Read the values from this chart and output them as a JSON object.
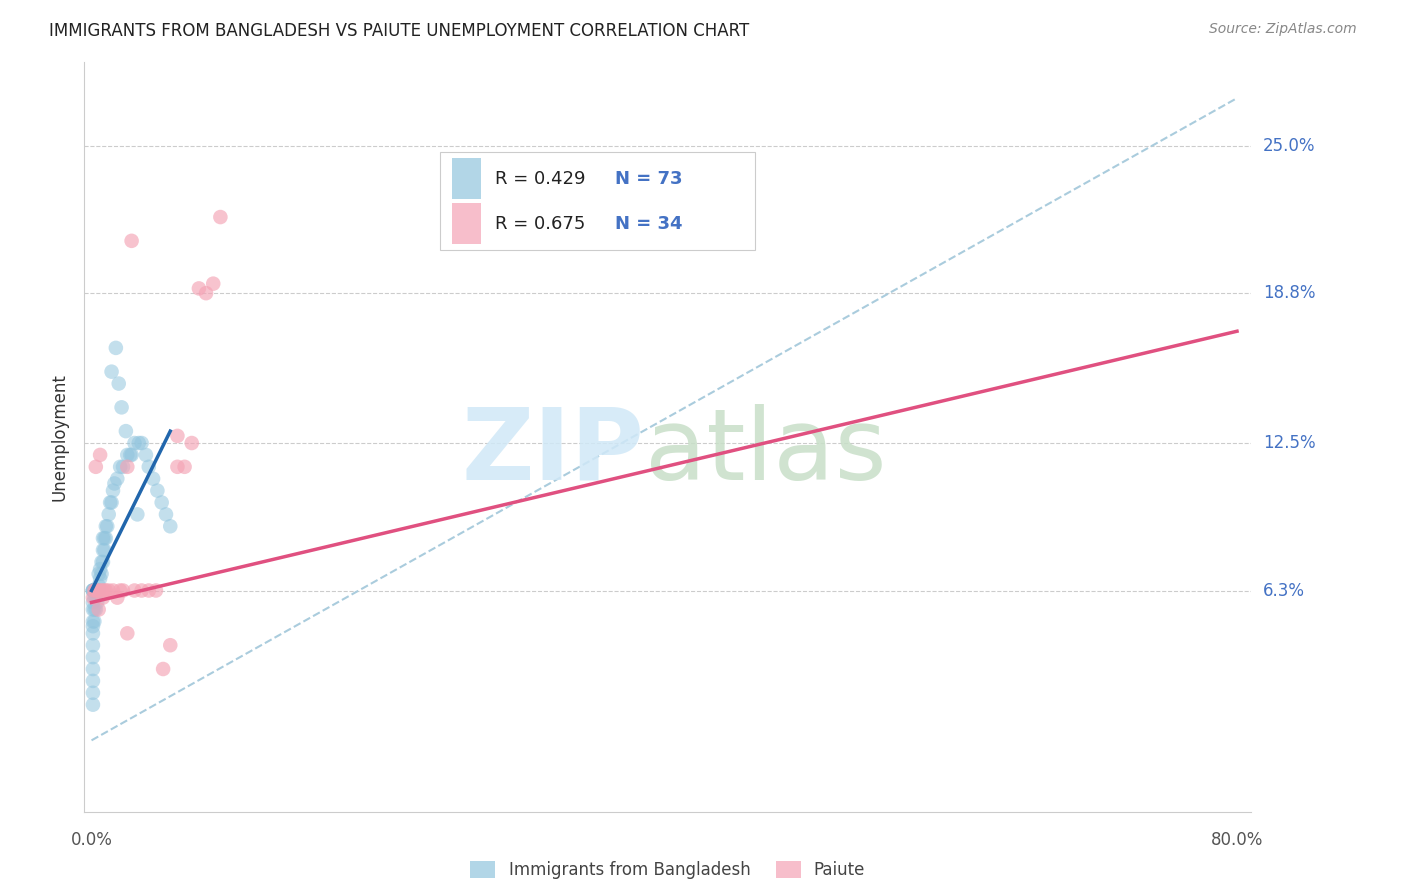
{
  "title": "IMMIGRANTS FROM BANGLADESH VS PAIUTE UNEMPLOYMENT CORRELATION CHART",
  "source": "Source: ZipAtlas.com",
  "ylabel": "Unemployment",
  "ytick_values": [
    0.063,
    0.125,
    0.188,
    0.25
  ],
  "ytick_labels": [
    "6.3%",
    "12.5%",
    "18.8%",
    "25.0%"
  ],
  "xmin": 0.0,
  "xmax": 0.8,
  "ymin": -0.03,
  "ymax": 0.285,
  "blue_color": "#92c5de",
  "pink_color": "#f4a3b5",
  "blue_line_color": "#2166ac",
  "pink_line_color": "#e05080",
  "dashed_color": "#aaccdd",
  "label_color": "#4472c4",
  "title_color": "#222222",
  "source_color": "#888888",
  "grid_color": "#cccccc",
  "watermark_zip_color": "#d0e8f7",
  "watermark_atlas_color": "#c8dfc8",
  "legend_r_color": "#222222",
  "legend_n_color": "#4472c4",
  "blue_scatter_x": [
    0.001,
    0.001,
    0.001,
    0.001,
    0.001,
    0.001,
    0.001,
    0.001,
    0.001,
    0.001,
    0.001,
    0.001,
    0.001,
    0.001,
    0.001,
    0.002,
    0.002,
    0.002,
    0.002,
    0.002,
    0.002,
    0.002,
    0.003,
    0.003,
    0.003,
    0.003,
    0.003,
    0.004,
    0.004,
    0.004,
    0.004,
    0.005,
    0.005,
    0.005,
    0.006,
    0.006,
    0.007,
    0.007,
    0.008,
    0.008,
    0.008,
    0.009,
    0.009,
    0.01,
    0.01,
    0.011,
    0.012,
    0.013,
    0.014,
    0.015,
    0.016,
    0.018,
    0.02,
    0.022,
    0.025,
    0.028,
    0.03,
    0.033,
    0.035,
    0.038,
    0.04,
    0.043,
    0.046,
    0.049,
    0.052,
    0.055,
    0.014,
    0.017,
    0.019,
    0.021,
    0.024,
    0.027,
    0.032
  ],
  "blue_scatter_y": [
    0.063,
    0.063,
    0.063,
    0.063,
    0.058,
    0.055,
    0.05,
    0.048,
    0.045,
    0.04,
    0.035,
    0.03,
    0.025,
    0.02,
    0.015,
    0.063,
    0.063,
    0.063,
    0.063,
    0.06,
    0.055,
    0.05,
    0.063,
    0.063,
    0.063,
    0.06,
    0.055,
    0.063,
    0.063,
    0.063,
    0.058,
    0.063,
    0.065,
    0.07,
    0.068,
    0.072,
    0.07,
    0.075,
    0.075,
    0.08,
    0.085,
    0.08,
    0.085,
    0.085,
    0.09,
    0.09,
    0.095,
    0.1,
    0.1,
    0.105,
    0.108,
    0.11,
    0.115,
    0.115,
    0.12,
    0.12,
    0.125,
    0.125,
    0.125,
    0.12,
    0.115,
    0.11,
    0.105,
    0.1,
    0.095,
    0.09,
    0.155,
    0.165,
    0.15,
    0.14,
    0.13,
    0.12,
    0.095
  ],
  "pink_scatter_x": [
    0.001,
    0.002,
    0.003,
    0.004,
    0.005,
    0.006,
    0.007,
    0.008,
    0.009,
    0.01,
    0.012,
    0.015,
    0.018,
    0.02,
    0.022,
    0.025,
    0.028,
    0.03,
    0.035,
    0.04,
    0.045,
    0.05,
    0.055,
    0.06,
    0.065,
    0.07,
    0.075,
    0.08,
    0.085,
    0.09,
    0.003,
    0.006,
    0.025,
    0.06
  ],
  "pink_scatter_y": [
    0.06,
    0.063,
    0.063,
    0.063,
    0.055,
    0.063,
    0.063,
    0.06,
    0.063,
    0.063,
    0.063,
    0.063,
    0.06,
    0.063,
    0.063,
    0.045,
    0.21,
    0.063,
    0.063,
    0.063,
    0.063,
    0.03,
    0.04,
    0.128,
    0.115,
    0.125,
    0.19,
    0.188,
    0.192,
    0.22,
    0.115,
    0.12,
    0.115,
    0.115
  ],
  "blue_line_x": [
    0.0,
    0.055
  ],
  "blue_line_y": [
    0.063,
    0.13
  ],
  "pink_line_x": [
    0.0,
    0.8
  ],
  "pink_line_y": [
    0.058,
    0.172
  ],
  "dashed_line_x": [
    0.0,
    0.8
  ],
  "dashed_line_y": [
    0.0,
    0.27
  ]
}
